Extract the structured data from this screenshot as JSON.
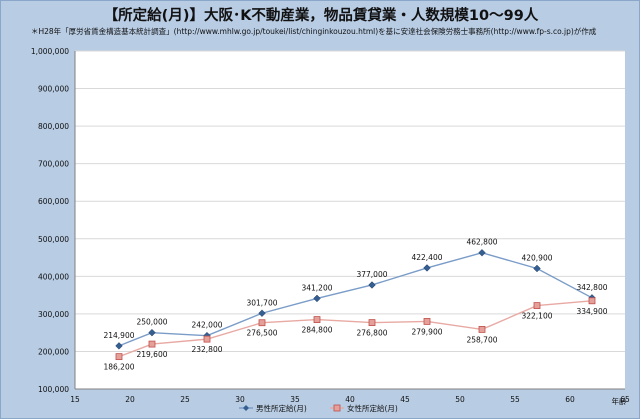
{
  "title": "【所定給(月)】大阪･K不動産業，物品賃貸業・人数規模10～99人",
  "source_note": "＊H28年「厚労省賃金構造基本統計調査」(http://www.mhlw.go.jp/toukei/list/chinginkouzou.html)を基に安達社会保険労務士事務所(http://www.fp-s.co.jp)が作成",
  "colors": {
    "background": "#b8cce4",
    "plot_area": "#ffffff",
    "gridline": "#d9d9d9",
    "male": "#365f91",
    "male_line": "#7a9cc8",
    "female": "#e6a09a",
    "female_line": "#e8a9a3"
  },
  "chart_data": {
    "type": "line",
    "title": "【所定給(月)】大阪･K不動産業，物品賃貸業・人数規模10～99人",
    "xlabel": "年齢",
    "ylabel": "",
    "xlim": [
      15,
      65
    ],
    "ylim": [
      100000,
      1000000
    ],
    "x_ticks": [
      15,
      20,
      25,
      30,
      35,
      40,
      45,
      50,
      55,
      60,
      65
    ],
    "y_ticks": [
      "100,000",
      "200,000",
      "300,000",
      "400,000",
      "500,000",
      "600,000",
      "700,000",
      "800,000",
      "900,000",
      "1,000,000"
    ],
    "grid": "horizontal",
    "legend_position": "bottom",
    "series": [
      {
        "name": "男性所定給(月)",
        "marker": "diamond",
        "x": [
          19,
          22,
          27,
          32,
          37,
          42,
          47,
          52,
          57,
          62
        ],
        "values": [
          214900,
          250000,
          242000,
          301700,
          341200,
          377000,
          422400,
          462800,
          420900,
          342800
        ],
        "labels": [
          "214,900",
          "250,000",
          "242,000",
          "301,700",
          "341,200",
          "377,000",
          "422,400",
          "462,800",
          "420,900",
          "342,800"
        ]
      },
      {
        "name": "女性所定給(月)",
        "marker": "square",
        "x": [
          19,
          22,
          27,
          32,
          37,
          42,
          47,
          52,
          57,
          62
        ],
        "values": [
          186200,
          219600,
          232800,
          276500,
          284800,
          276800,
          279900,
          258700,
          322100,
          334900
        ],
        "labels": [
          "186,200",
          "219,600",
          "232,800",
          "276,500",
          "284,800",
          "276,800",
          "279,900",
          "258,700",
          "322,100",
          "334,900"
        ]
      }
    ]
  }
}
